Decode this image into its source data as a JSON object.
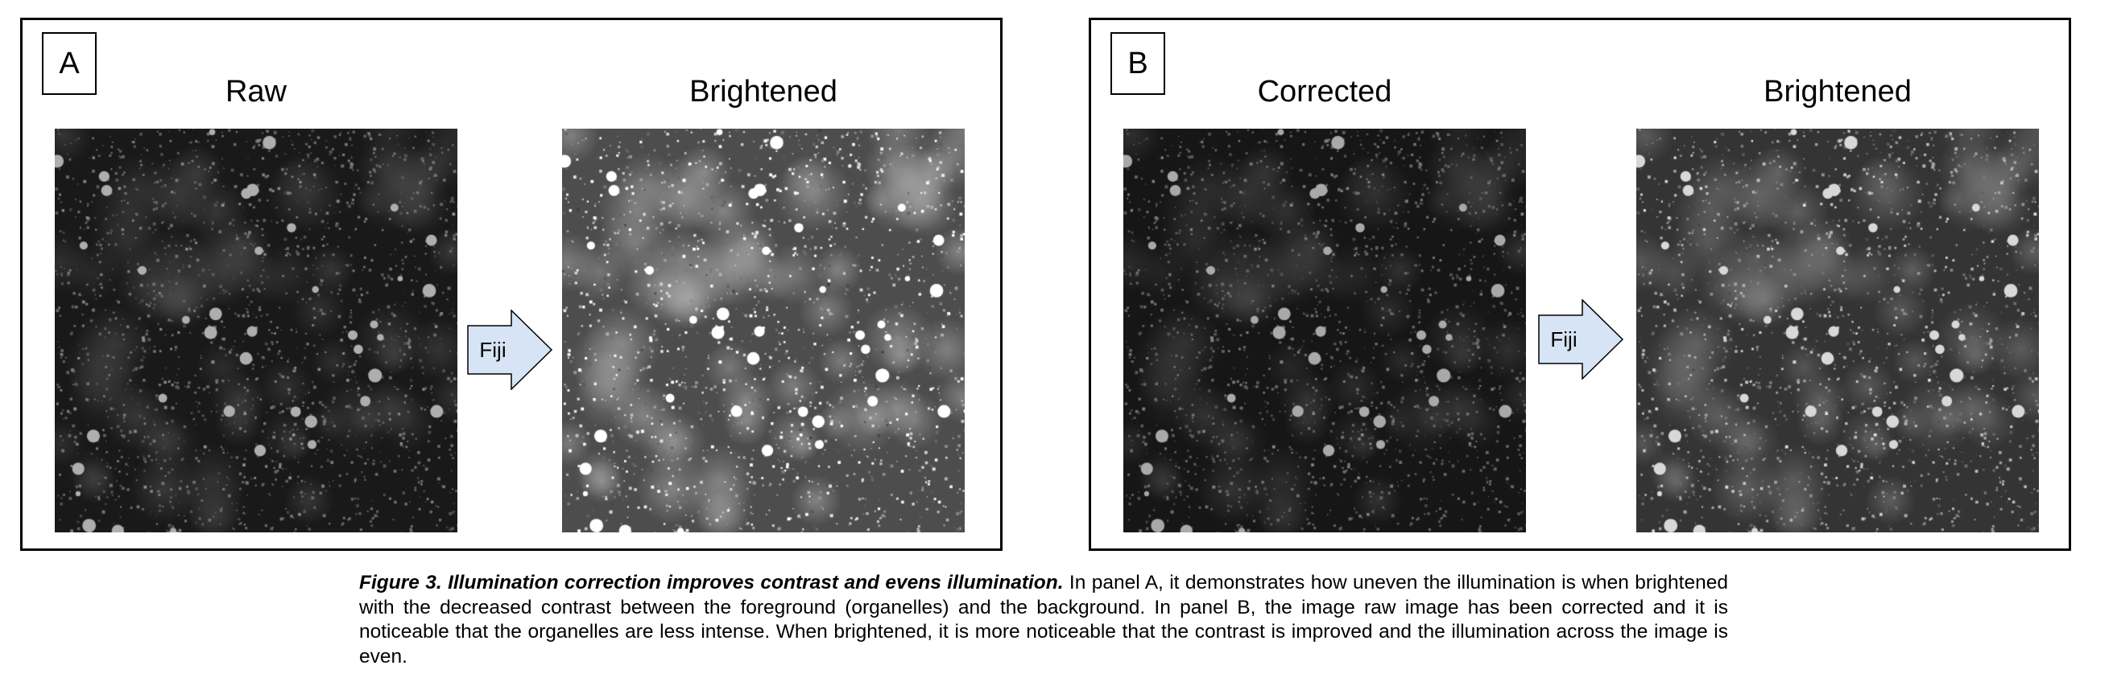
{
  "panels": [
    {
      "letter": "A",
      "left_title": "Raw",
      "right_title": "Brightened",
      "arrow_label": "Fiji"
    },
    {
      "letter": "B",
      "left_title": "Corrected",
      "right_title": "Brightened",
      "arrow_label": "Fiji"
    }
  ],
  "caption": {
    "lead": "Figure 3. Illumination correction improves contrast and evens illumination.",
    "body": " In panel A, it demonstrates how uneven the illumination is when brightened with the decreased contrast between the foreground (organelles) and the background. In panel B, the image raw image has been corrected and it is noticeable that the organelles are less intense. When brightened, it is more noticeable that the contrast is improved and the illumination across the image is even."
  },
  "colors": {
    "arrow_fill": "#d6e4f5",
    "arrow_stroke": "#000000"
  },
  "images": [
    {
      "name": "raw",
      "brightness": 0.22
    },
    {
      "name": "brightened-a",
      "brightness": 0.95
    },
    {
      "name": "corrected",
      "brightness": 0.17
    },
    {
      "name": "brightened-b",
      "brightness": 0.6
    }
  ]
}
